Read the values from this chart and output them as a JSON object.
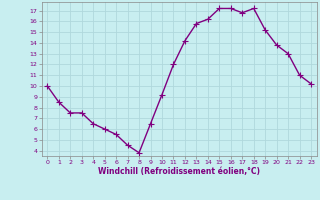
{
  "x": [
    0,
    1,
    2,
    3,
    4,
    5,
    6,
    7,
    8,
    9,
    10,
    11,
    12,
    13,
    14,
    15,
    16,
    17,
    18,
    19,
    20,
    21,
    22,
    23
  ],
  "y": [
    10,
    8.5,
    7.5,
    7.5,
    6.5,
    6,
    5.5,
    4.5,
    3.8,
    6.5,
    9.2,
    12,
    14.2,
    15.8,
    16.2,
    17.2,
    17.2,
    16.8,
    17.2,
    15.2,
    13.8,
    13,
    11,
    10.2
  ],
  "line_color": "#800080",
  "marker": "+",
  "marker_size": 4,
  "bg_color": "#c8eef0",
  "grid_color": "#b0d8dc",
  "xlabel": "Windchill (Refroidissement éolien,°C)",
  "xlabel_color": "#800080",
  "tick_color": "#800080",
  "ylim": [
    3.5,
    17.8
  ],
  "xlim": [
    -0.5,
    23.5
  ],
  "yticks": [
    4,
    5,
    6,
    7,
    8,
    9,
    10,
    11,
    12,
    13,
    14,
    15,
    16,
    17
  ],
  "xticks": [
    0,
    1,
    2,
    3,
    4,
    5,
    6,
    7,
    8,
    9,
    10,
    11,
    12,
    13,
    14,
    15,
    16,
    17,
    18,
    19,
    20,
    21,
    22,
    23
  ],
  "line_width": 1.0,
  "spine_color": "#888888"
}
